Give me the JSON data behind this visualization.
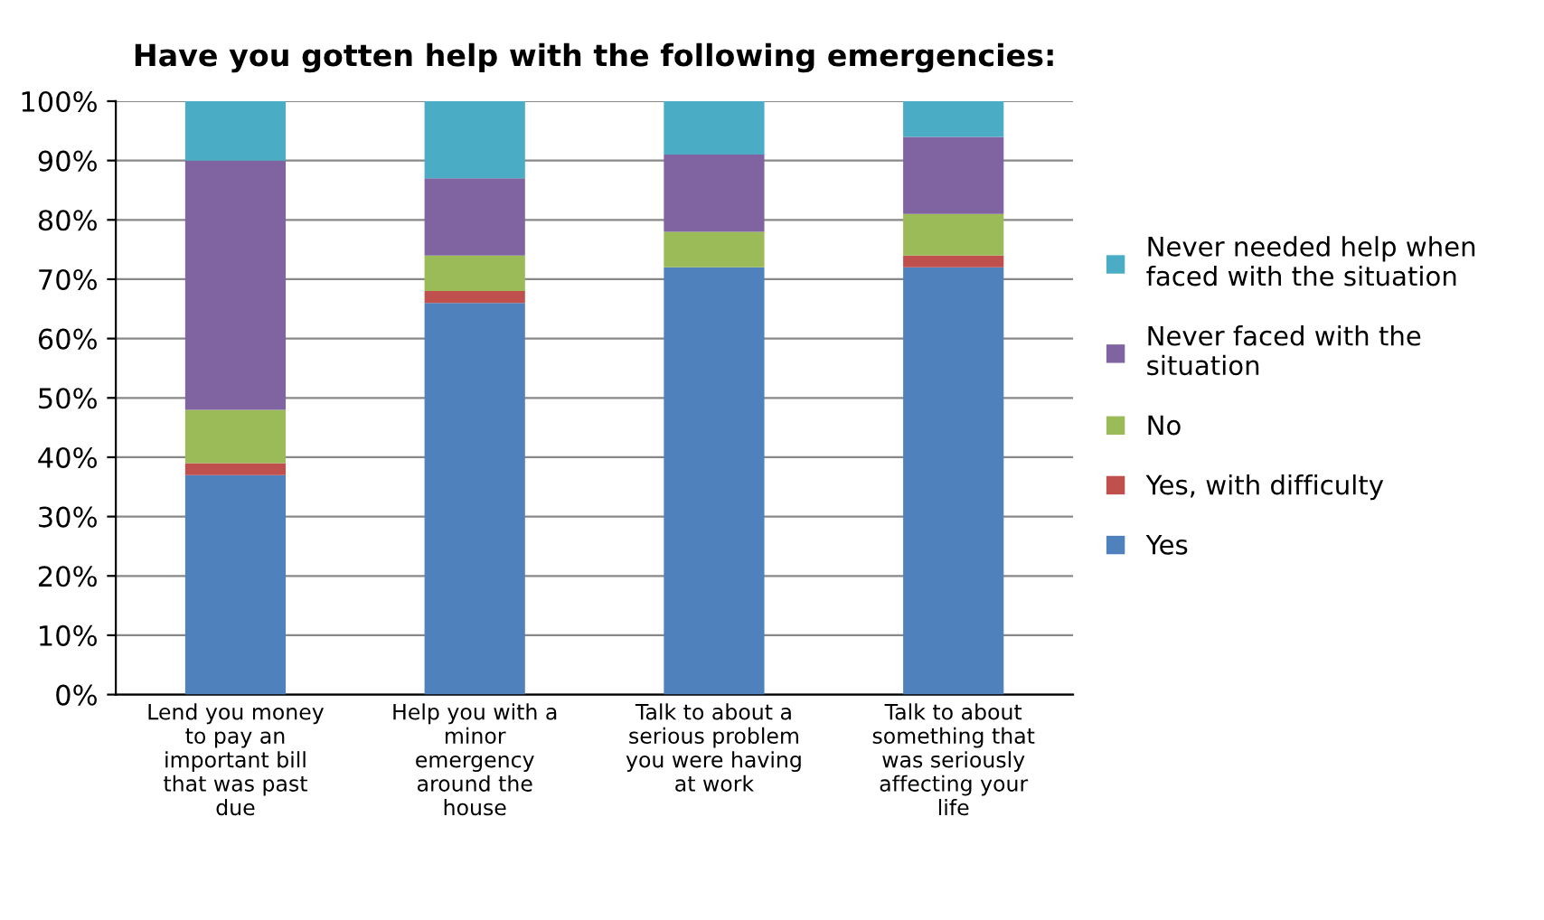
{
  "chart_data": {
    "type": "bar",
    "stacked": true,
    "title": "Have you gotten help with the following emergencies:",
    "categories": [
      "Lend you money\nto pay an\nimportant bill\nthat was past\ndue",
      "Help you with a\nminor\nemergency\naround the\nhouse",
      "Talk to about a\nserious problem\nyou were having\nat work",
      "Talk to about\nsomething that\nwas seriously\naffecting your\nlife"
    ],
    "series": [
      {
        "name": "Yes",
        "color": "#4f81bd",
        "values": [
          37,
          66,
          72,
          72
        ]
      },
      {
        "name": "Yes, with difficulty",
        "color": "#c0504d",
        "values": [
          2,
          2,
          0,
          2
        ]
      },
      {
        "name": "No",
        "color": "#9bbb59",
        "values": [
          9,
          6,
          6,
          7
        ]
      },
      {
        "name": "Never faced with the\nsituation",
        "color": "#8064a2",
        "values": [
          42,
          13,
          13,
          13
        ]
      },
      {
        "name": "Never needed help when\nfaced with the situation",
        "color": "#4bacc6",
        "values": [
          10,
          13,
          9,
          6
        ]
      }
    ],
    "ylim": [
      0,
      100
    ],
    "yticks": [
      {
        "value": 0,
        "label": "0%"
      },
      {
        "value": 10,
        "label": "10%"
      },
      {
        "value": 20,
        "label": "20%"
      },
      {
        "value": 30,
        "label": "30%"
      },
      {
        "value": 40,
        "label": "40%"
      },
      {
        "value": 50,
        "label": "50%"
      },
      {
        "value": 60,
        "label": "60%"
      },
      {
        "value": 70,
        "label": "70%"
      },
      {
        "value": 80,
        "label": "80%"
      },
      {
        "value": 90,
        "label": "90%"
      },
      {
        "value": 100,
        "label": "100%"
      }
    ],
    "grid": "y",
    "legend": "right"
  }
}
